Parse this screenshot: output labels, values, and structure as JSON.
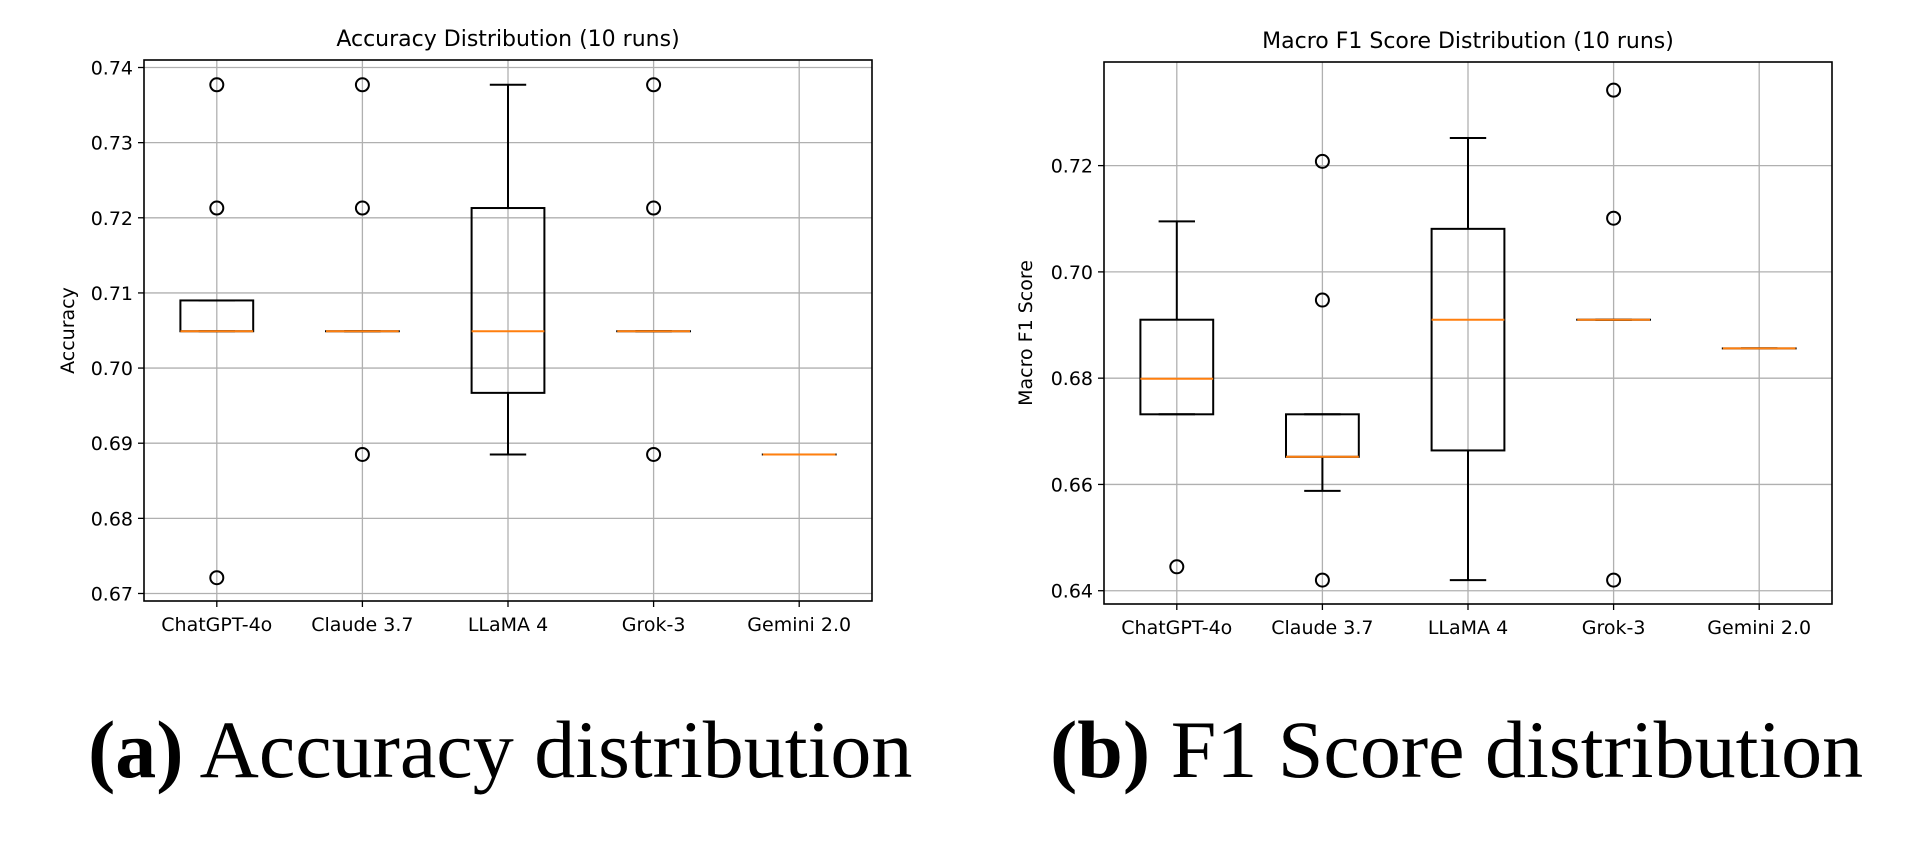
{
  "chart_data": [
    {
      "type": "box",
      "title": "Accuracy Distribution (10 runs)",
      "xlabel": "",
      "ylabel": "Accuracy",
      "ylim": [
        0.669,
        0.741
      ],
      "yticks": [
        0.67,
        0.68,
        0.69,
        0.7,
        0.71,
        0.72,
        0.73,
        0.74
      ],
      "ytick_labels": [
        "0.67",
        "0.68",
        "0.69",
        "0.70",
        "0.71",
        "0.72",
        "0.73",
        "0.74"
      ],
      "grid": true,
      "colors": {
        "box": "#000000",
        "median": "#ff7f0e",
        "grid": "#b0b0b0"
      },
      "categories": [
        "ChatGPT-4o",
        "Claude 3.7",
        "LLaMA 4",
        "Grok-3",
        "Gemini 2.0"
      ],
      "boxes": [
        {
          "q1": 0.7049,
          "median": 0.7049,
          "q3": 0.709,
          "whislo": 0.7049,
          "whishi": 0.709,
          "fliers": [
            0.7377,
            0.7213,
            0.6721
          ]
        },
        {
          "q1": 0.7049,
          "median": 0.7049,
          "q3": 0.7049,
          "whislo": 0.7049,
          "whishi": 0.7049,
          "fliers": [
            0.7377,
            0.7213,
            0.6885
          ]
        },
        {
          "q1": 0.6967,
          "median": 0.7049,
          "q3": 0.7213,
          "whislo": 0.6885,
          "whishi": 0.7377,
          "fliers": []
        },
        {
          "q1": 0.7049,
          "median": 0.7049,
          "q3": 0.7049,
          "whislo": 0.7049,
          "whishi": 0.7049,
          "fliers": [
            0.7377,
            0.7213,
            0.6885
          ]
        },
        {
          "q1": 0.6885,
          "median": 0.6885,
          "q3": 0.6885,
          "whislo": 0.6885,
          "whishi": 0.6885,
          "fliers": []
        }
      ]
    },
    {
      "type": "box",
      "title": "Macro F1 Score Distribution (10 runs)",
      "xlabel": "",
      "ylabel": "Macro F1 Score",
      "ylim": [
        0.6375,
        0.7395
      ],
      "yticks": [
        0.64,
        0.66,
        0.68,
        0.7,
        0.72
      ],
      "ytick_labels": [
        "0.64",
        "0.66",
        "0.68",
        "0.70",
        "0.72"
      ],
      "grid": true,
      "colors": {
        "box": "#000000",
        "median": "#ff7f0e",
        "grid": "#b0b0b0"
      },
      "categories": [
        "ChatGPT-4o",
        "Claude 3.7",
        "LLaMA 4",
        "Grok-3",
        "Gemini 2.0"
      ],
      "boxes": [
        {
          "q1": 0.6732,
          "median": 0.6799,
          "q3": 0.691,
          "whislo": 0.6732,
          "whishi": 0.7095,
          "fliers": [
            0.6445
          ]
        },
        {
          "q1": 0.6652,
          "median": 0.6652,
          "q3": 0.6732,
          "whislo": 0.6588,
          "whishi": 0.6732,
          "fliers": [
            0.7208,
            0.6947,
            0.642
          ]
        },
        {
          "q1": 0.6664,
          "median": 0.691,
          "q3": 0.7081,
          "whislo": 0.642,
          "whishi": 0.7252,
          "fliers": []
        },
        {
          "q1": 0.691,
          "median": 0.691,
          "q3": 0.691,
          "whislo": 0.691,
          "whishi": 0.691,
          "fliers": [
            0.7342,
            0.7101,
            0.642
          ]
        },
        {
          "q1": 0.6856,
          "median": 0.6856,
          "q3": 0.6856,
          "whislo": 0.6856,
          "whishi": 0.6856,
          "fliers": []
        }
      ]
    }
  ],
  "captions": [
    {
      "letter": "(a)",
      "text": " Accuracy distribution"
    },
    {
      "letter": "(b)",
      "text": " F1 Score distribution"
    }
  ]
}
